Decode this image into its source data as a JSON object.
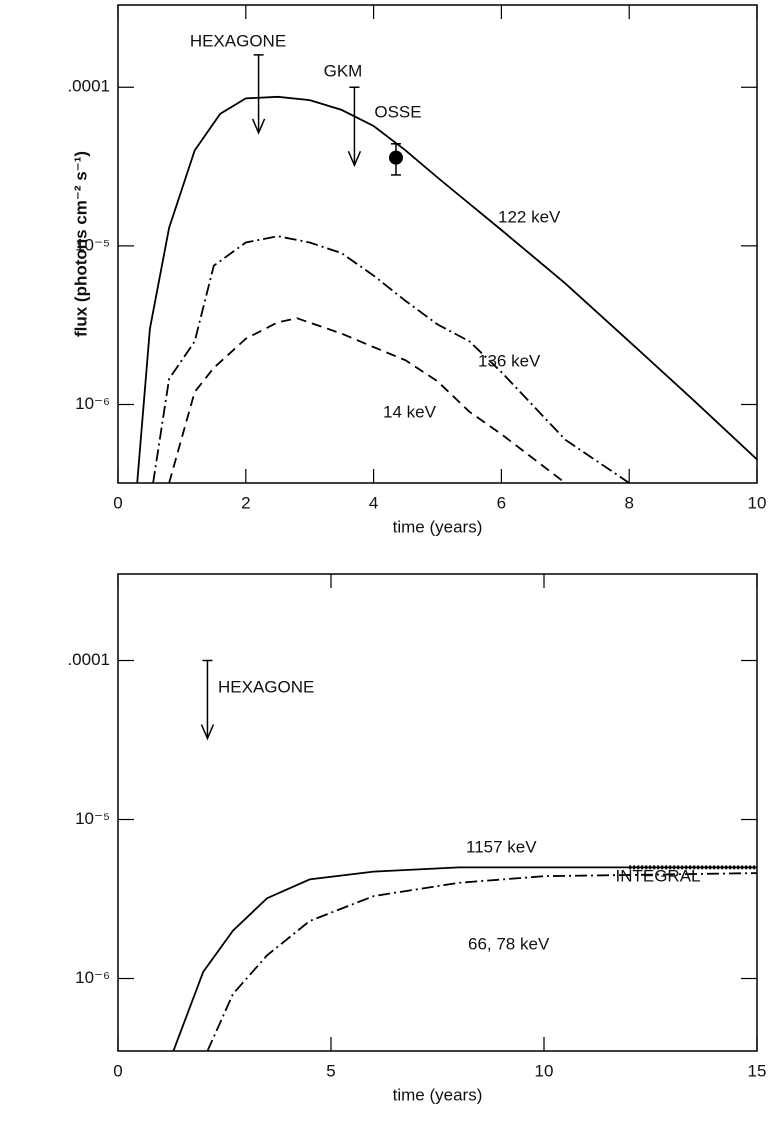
{
  "chart_data": [
    {
      "type": "line",
      "yscale": "log",
      "xlabel": "time (years)",
      "ylabel": "flux (photons cm⁻² s⁻¹)",
      "xlim": [
        0,
        10
      ],
      "ylim": [
        3.2e-07,
        0.00033
      ],
      "xticks": [
        0,
        2,
        4,
        6,
        8,
        10
      ],
      "yticks": [
        {
          "value": 0.0001,
          "label": ".0001"
        },
        {
          "value": 1e-05,
          "label": "10⁻⁵"
        },
        {
          "value": 1e-06,
          "label": "10⁻⁶"
        }
      ],
      "series": [
        {
          "name": "122 keV",
          "color": "#000000",
          "linestyle": "solid",
          "x": [
            0.3,
            0.5,
            0.8,
            1.2,
            1.6,
            2.0,
            2.5,
            3.0,
            3.5,
            4.0,
            4.5,
            5,
            6,
            7,
            8,
            9,
            10
          ],
          "values": [
            3.2e-07,
            3e-06,
            1.3e-05,
            4e-05,
            6.8e-05,
            8.5e-05,
            8.7e-05,
            8.3e-05,
            7.2e-05,
            5.7e-05,
            4e-05,
            2.7e-05,
            1.26e-05,
            5.8e-06,
            2.5e-06,
            1.07e-06,
            4.5e-07
          ]
        },
        {
          "name": "136 keV",
          "color": "#000000",
          "linestyle": "dashdot",
          "x": [
            0.55,
            0.8,
            1.2,
            1.5,
            2.0,
            2.5,
            3.0,
            3.5,
            4.0,
            4.5,
            5,
            5.5,
            6,
            7,
            8
          ],
          "values": [
            3.2e-07,
            1.45e-06,
            2.5e-06,
            7.5e-06,
            1.05e-05,
            1.15e-05,
            1.05e-05,
            9e-06,
            6.5e-06,
            4.5e-06,
            3.2e-06,
            2.5e-06,
            1.6e-06,
            6e-07,
            3.2e-07
          ]
        },
        {
          "name": "14 keV",
          "color": "#000000",
          "linestyle": "dashed",
          "x": [
            0.8,
            1.2,
            1.5,
            2.0,
            2.5,
            2.8,
            3.5,
            4.0,
            4.5,
            5,
            5.5,
            6,
            7
          ],
          "values": [
            3.2e-07,
            1.2e-06,
            1.7e-06,
            2.6e-06,
            3.3e-06,
            3.5e-06,
            2.8e-06,
            2.3e-06,
            1.9e-06,
            1.4e-06,
            9e-07,
            6.5e-07,
            3.2e-07
          ]
        }
      ],
      "annotations": [
        {
          "text": "HEXAGONE",
          "kind": "upper-limit",
          "x": 2.2,
          "y": 0.00016
        },
        {
          "text": "GKM",
          "kind": "upper-limit",
          "x": 3.7,
          "y": 0.0001
        },
        {
          "text": "OSSE",
          "kind": "point",
          "x": 4.35,
          "y": 3.6e-05,
          "y_low": 2.8e-05,
          "y_high": 4.4e-05
        }
      ]
    },
    {
      "type": "line",
      "yscale": "log",
      "xlabel": "time (years)",
      "xlim": [
        0,
        15
      ],
      "ylim": [
        3.5e-07,
        0.00035
      ],
      "xticks": [
        0,
        5,
        10,
        15
      ],
      "yticks": [
        {
          "value": 0.0001,
          "label": ".0001"
        },
        {
          "value": 1e-05,
          "label": "10⁻⁵"
        },
        {
          "value": 1e-06,
          "label": "10⁻⁶"
        }
      ],
      "series": [
        {
          "name": "1157 keV",
          "color": "#000000",
          "linestyle": "solid",
          "x": [
            1.3,
            2,
            2.7,
            3.5,
            4.5,
            6,
            8,
            10,
            15
          ],
          "values": [
            3.5e-07,
            1.1e-06,
            2e-06,
            3.2e-06,
            4.2e-06,
            4.7e-06,
            5e-06,
            5e-06,
            5e-06
          ]
        },
        {
          "name": "66, 78 keV",
          "color": "#000000",
          "linestyle": "dashdot",
          "x": [
            2.1,
            2.7,
            3.5,
            4.5,
            6,
            8,
            10,
            15
          ],
          "values": [
            3.5e-07,
            8e-07,
            1.4e-06,
            2.3e-06,
            3.3e-06,
            4e-06,
            4.4e-06,
            4.6e-06
          ]
        }
      ],
      "annotations": [
        {
          "text": "HEXAGONE",
          "kind": "upper-limit",
          "x": 2.1,
          "y": 0.0001
        },
        {
          "text": "INTEGRAL",
          "kind": "sensitivity",
          "x": [
            12,
            15
          ],
          "y": 5e-06
        }
      ]
    }
  ]
}
